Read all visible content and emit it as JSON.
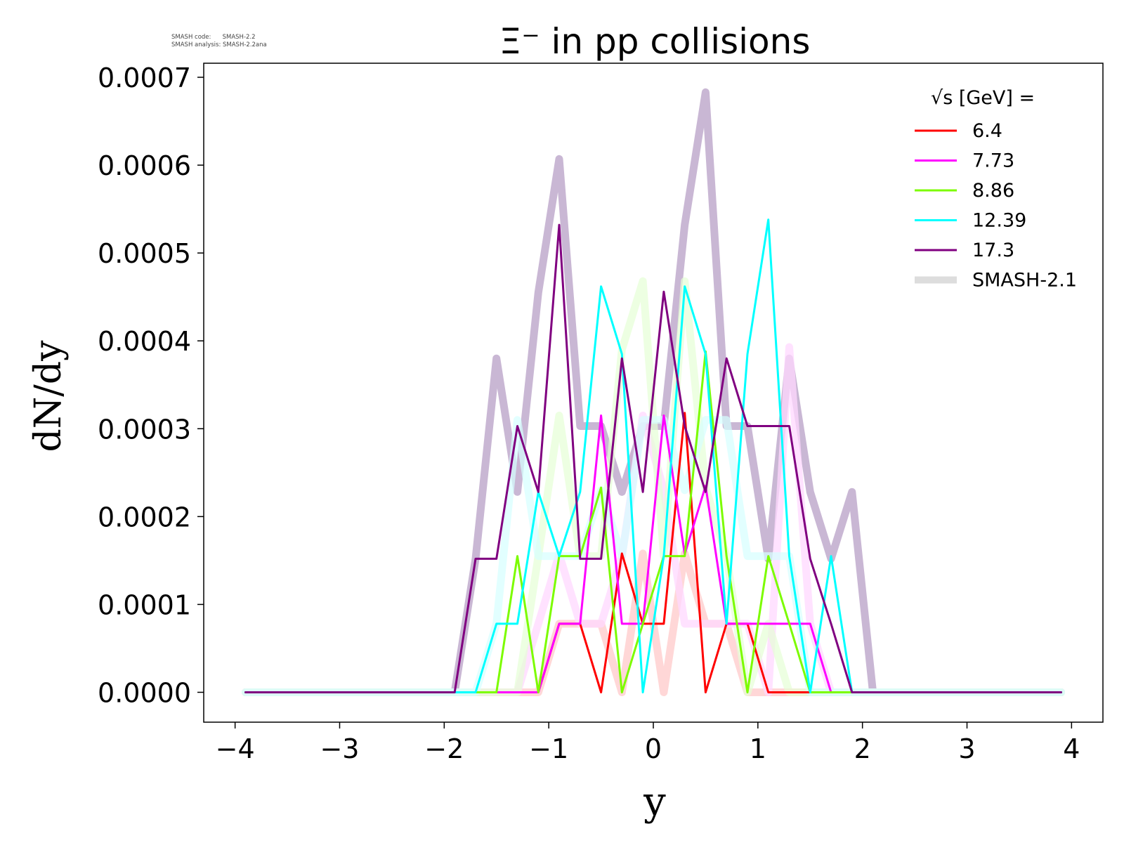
{
  "meta": {
    "line1": "SMASH code:      SMASH-2.2",
    "line2": "SMASH analysis: SMASH-2.2ana"
  },
  "chart_data": {
    "type": "line",
    "title": "Ξ⁻ in pp collisions",
    "xlabel": "y",
    "ylabel": "dN/dy",
    "xlim": [
      -4.3,
      4.3
    ],
    "ylim": [
      -3.4e-05,
      0.000716
    ],
    "xticks": [
      "−4",
      "−3",
      "−2",
      "−1",
      "0",
      "1",
      "2",
      "3",
      "4"
    ],
    "xtick_values": [
      -4,
      -3,
      -2,
      -1,
      0,
      1,
      2,
      3,
      4
    ],
    "yticks": [
      "0.0000",
      "0.0001",
      "0.0002",
      "0.0003",
      "0.0004",
      "0.0005",
      "0.0006",
      "0.0007"
    ],
    "ytick_values": [
      0,
      0.0001,
      0.0002,
      0.0003,
      0.0004,
      0.0005,
      0.0006,
      0.0007
    ],
    "grid": false,
    "legend": {
      "title": "√s  [GeV] =",
      "position": "top-right"
    },
    "x": [
      -3.9,
      -3.7,
      -3.5,
      -3.3,
      -3.1,
      -2.9,
      -2.7,
      -2.5,
      -2.3,
      -2.1,
      -1.9,
      -1.7,
      -1.5,
      -1.3,
      -1.1,
      -0.9,
      -0.7,
      -0.5,
      -0.3,
      -0.1,
      0.1,
      0.3,
      0.5,
      0.7,
      0.9,
      1.1,
      1.3,
      1.5,
      1.7,
      1.9,
      2.1,
      2.3,
      2.5,
      2.7,
      2.9,
      3.1,
      3.3,
      3.5,
      3.7,
      3.9
    ],
    "series": [
      {
        "name": "6.4",
        "color": "#ff0000",
        "width": 3,
        "opacity": 1,
        "values": [
          0,
          0,
          0,
          0,
          0,
          0,
          0,
          0,
          0,
          0,
          0,
          0,
          0,
          0,
          0,
          7.8e-05,
          7.8e-05,
          0,
          0.000158,
          7.8e-05,
          7.8e-05,
          0.000318,
          0,
          7.8e-05,
          7.8e-05,
          0,
          0,
          0,
          0,
          0,
          0,
          0,
          0,
          0,
          0,
          0,
          0,
          0,
          0,
          0
        ]
      },
      {
        "name": "7.73",
        "color": "#ff00ff",
        "width": 3,
        "opacity": 1,
        "values": [
          0,
          0,
          0,
          0,
          0,
          0,
          0,
          0,
          0,
          0,
          0,
          0,
          0,
          0,
          0,
          7.8e-05,
          7.8e-05,
          0.000315,
          7.8e-05,
          7.8e-05,
          0.000315,
          0.000157,
          0.000235,
          7.8e-05,
          7.8e-05,
          7.8e-05,
          7.8e-05,
          7.8e-05,
          0,
          0,
          0,
          0,
          0,
          0,
          0,
          0,
          0,
          0,
          0,
          0
        ]
      },
      {
        "name": "8.86",
        "color": "#7cfc00",
        "width": 3,
        "opacity": 1,
        "values": [
          0,
          0,
          0,
          0,
          0,
          0,
          0,
          0,
          0,
          0,
          0,
          0,
          0,
          0.000155,
          0,
          0.000155,
          0.000155,
          0.000233,
          0,
          7.8e-05,
          0.000155,
          0.000155,
          0.000388,
          0.000155,
          0,
          0.000155,
          7.8e-05,
          0,
          0,
          0,
          0,
          0,
          0,
          0,
          0,
          0,
          0,
          0,
          0,
          0
        ]
      },
      {
        "name": "12.39",
        "color": "#00ffff",
        "width": 3,
        "opacity": 1,
        "values": [
          0,
          0,
          0,
          0,
          0,
          0,
          0,
          0,
          0,
          0,
          0,
          0,
          7.8e-05,
          7.8e-05,
          0.000228,
          0.000155,
          0.000228,
          0.000462,
          0.000385,
          0,
          0.000155,
          0.000462,
          0.000385,
          7.8e-05,
          0.000385,
          0.000538,
          0.000155,
          0,
          0.000155,
          0,
          0,
          0,
          0,
          0,
          0,
          0,
          0,
          0,
          0,
          0
        ]
      },
      {
        "name": "17.3",
        "color": "#800080",
        "width": 3,
        "opacity": 1,
        "values": [
          0,
          0,
          0,
          0,
          0,
          0,
          0,
          0,
          0,
          0,
          0,
          0.000152,
          0.000152,
          0.000303,
          0.000228,
          0.000532,
          0.000152,
          0.000152,
          0.00038,
          0.000228,
          0.000456,
          0.000303,
          0.000228,
          0.00038,
          0.000303,
          0.000303,
          0.000303,
          0.000152,
          7.8e-05,
          0,
          0,
          0,
          0,
          0,
          0,
          0,
          0,
          0,
          0,
          0
        ]
      },
      {
        "name": "SMASH-2.1",
        "color": "#c6b3d2",
        "width": 11,
        "opacity": 0.95,
        "legend_color": "#dddddd",
        "values": [
          0,
          0,
          0,
          0,
          0,
          0,
          0,
          0,
          0,
          0,
          0,
          0.000152,
          0.00038,
          0.000228,
          0.000455,
          0.000607,
          0.000303,
          0.000303,
          0.000228,
          0.000303,
          0.000303,
          0.000532,
          0.000683,
          0.000303,
          0.000303,
          0.000152,
          0.00038,
          0.000228,
          0.000152,
          0.000228,
          0,
          0,
          0,
          0,
          0,
          0,
          0,
          0,
          0,
          0
        ]
      },
      {
        "name": "",
        "color": "#ffd0d0",
        "width": 11,
        "opacity": 0.85,
        "values": [
          0,
          0,
          0,
          0,
          0,
          0,
          0,
          0,
          0,
          0,
          0,
          0,
          0,
          0,
          0,
          7.8e-05,
          7.8e-05,
          7.8e-05,
          0,
          0.000158,
          0,
          0.000158,
          7.8e-05,
          7.8e-05,
          0,
          0,
          0,
          0,
          0,
          0,
          0,
          0,
          0,
          0,
          0,
          0,
          0,
          0,
          0,
          0
        ]
      },
      {
        "name": "",
        "color": "#ffd8ff",
        "width": 11,
        "opacity": 0.75,
        "values": [
          0,
          0,
          0,
          0,
          0,
          0,
          0,
          0,
          0,
          0,
          0,
          0,
          0,
          0,
          7.8e-05,
          0.000157,
          7.8e-05,
          7.8e-05,
          0.000155,
          0.000315,
          0.00023,
          7.8e-05,
          7.8e-05,
          7.8e-05,
          7.8e-05,
          0,
          0.000393,
          7.8e-05,
          0,
          0,
          0,
          0,
          0,
          0,
          0,
          0,
          0,
          0,
          0,
          0
        ]
      },
      {
        "name": "",
        "color": "#e6ffd6",
        "width": 11,
        "opacity": 0.7,
        "values": [
          0,
          0,
          0,
          0,
          0,
          0,
          0,
          0,
          0,
          0,
          0,
          0,
          0,
          0,
          0.000155,
          0.000315,
          0.000155,
          0.000155,
          0.00039,
          0.000468,
          0.000155,
          0.000468,
          0.000233,
          0.000155,
          0,
          7.8e-05,
          0,
          0,
          0,
          0,
          0,
          0,
          0,
          0,
          0,
          0,
          0,
          0,
          0,
          0
        ]
      },
      {
        "name": "",
        "color": "#d6ffff",
        "width": 11,
        "opacity": 0.7,
        "values": [
          0,
          0,
          0,
          0,
          0,
          0,
          0,
          0,
          0,
          0,
          0,
          0,
          7.8e-05,
          0.00031,
          0.000155,
          0.000155,
          0.000155,
          0.00023,
          0.000155,
          0.00031,
          0.00031,
          0.00023,
          0.00031,
          0.00031,
          0.000155,
          0.000155,
          0.000155,
          0,
          0,
          0,
          0,
          0,
          0,
          0,
          0,
          0,
          0,
          0,
          0,
          0
        ]
      }
    ]
  }
}
